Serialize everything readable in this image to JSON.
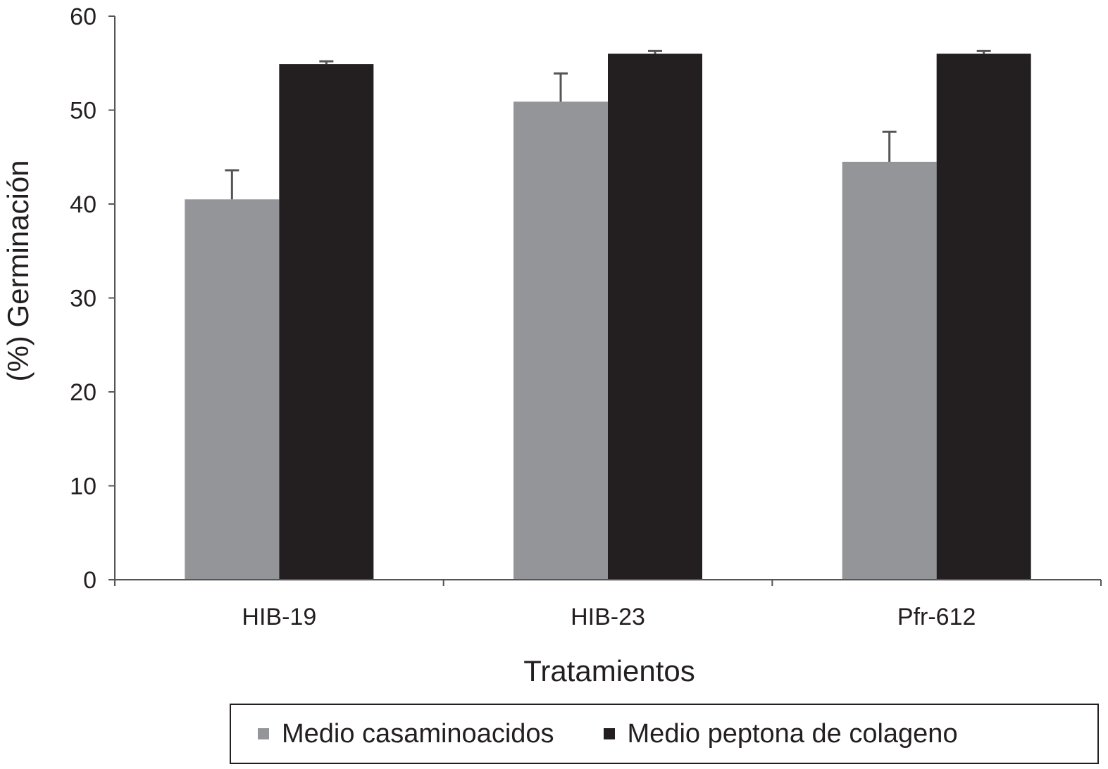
{
  "chart_data": {
    "type": "bar",
    "title": "",
    "xlabel": "Tratamientos",
    "ylabel": "(%) Germinación",
    "ylim": [
      0,
      60
    ],
    "yticks": [
      0,
      10,
      20,
      30,
      40,
      50,
      60
    ],
    "categories": [
      "HIB-19",
      "HIB-23",
      "Pfr-612"
    ],
    "series": [
      {
        "name": "Medio casaminoacidos",
        "color": "#949599",
        "values": [
          40.5,
          50.9,
          44.5
        ],
        "error": [
          3.1,
          3.0,
          3.2
        ]
      },
      {
        "name": "Medio peptona de colageno",
        "color": "#231f20",
        "values": [
          54.9,
          56.0,
          56.0
        ],
        "error": [
          0.3,
          0.3,
          0.3
        ]
      }
    ],
    "legend_position": "bottom",
    "grid": false
  }
}
